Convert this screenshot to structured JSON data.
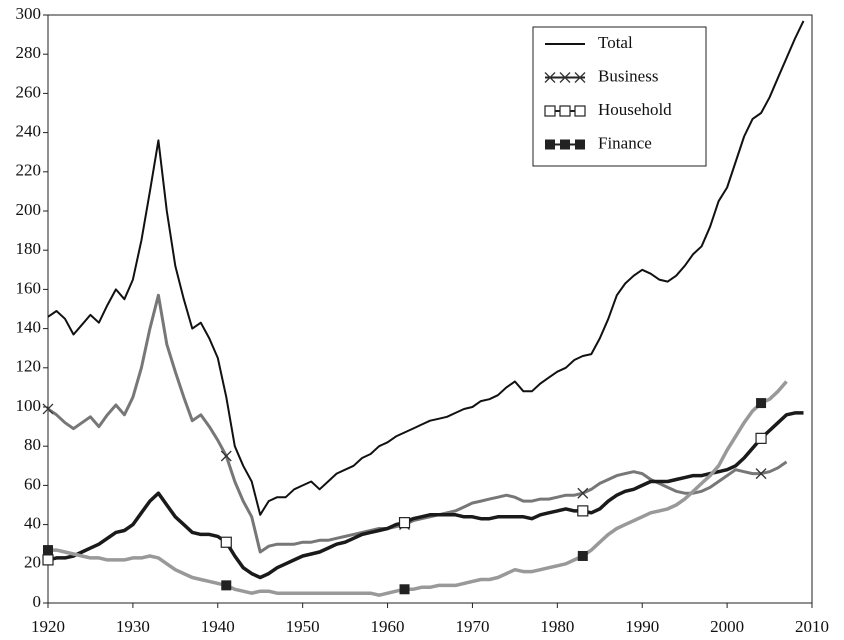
{
  "chart_data": {
    "type": "line",
    "x": [
      1920,
      1921,
      1922,
      1923,
      1924,
      1925,
      1926,
      1927,
      1928,
      1929,
      1930,
      1931,
      1932,
      1933,
      1934,
      1935,
      1936,
      1937,
      1938,
      1939,
      1940,
      1941,
      1942,
      1943,
      1944,
      1945,
      1946,
      1947,
      1948,
      1949,
      1950,
      1951,
      1952,
      1953,
      1954,
      1955,
      1956,
      1957,
      1958,
      1959,
      1960,
      1961,
      1962,
      1963,
      1964,
      1965,
      1966,
      1967,
      1968,
      1969,
      1970,
      1971,
      1972,
      1973,
      1974,
      1975,
      1976,
      1977,
      1978,
      1979,
      1980,
      1981,
      1982,
      1983,
      1984,
      1985,
      1986,
      1987,
      1988,
      1989,
      1990,
      1991,
      1992,
      1993,
      1994,
      1995,
      1996,
      1997,
      1998,
      1999,
      2000,
      2001,
      2002,
      2003,
      2004,
      2005,
      2006,
      2007,
      2008,
      2009
    ],
    "series": [
      {
        "name": "Total",
        "color": "#111111",
        "width": 2,
        "marker": "none",
        "values": [
          146,
          149,
          145,
          137,
          142,
          147,
          143,
          152,
          160,
          155,
          165,
          185,
          210,
          236,
          200,
          172,
          155,
          140,
          143,
          135,
          125,
          105,
          80,
          70,
          62,
          45,
          52,
          54,
          54,
          58,
          60,
          62,
          58,
          62,
          66,
          68,
          70,
          74,
          76,
          80,
          82,
          85,
          87,
          89,
          91,
          93,
          94,
          95,
          97,
          99,
          100,
          103,
          104,
          106,
          110,
          113,
          108,
          108,
          112,
          115,
          118,
          120,
          124,
          126,
          127,
          135,
          145,
          157,
          163,
          167,
          170,
          168,
          165,
          164,
          167,
          172,
          178,
          182,
          192,
          205,
          212,
          225,
          238,
          247,
          250,
          258,
          268,
          278,
          288,
          297
        ]
      },
      {
        "name": "Business",
        "color": "#777777",
        "width": 3,
        "marker": "x",
        "values": [
          99,
          96,
          92,
          89,
          92,
          95,
          90,
          96,
          101,
          96,
          105,
          120,
          140,
          157,
          132,
          118,
          105,
          93,
          96,
          90,
          83,
          75,
          62,
          52,
          44,
          26,
          29,
          30,
          30,
          30,
          31,
          31,
          32,
          32,
          33,
          34,
          35,
          36,
          37,
          38,
          38,
          39,
          40,
          42,
          43,
          44,
          45,
          46,
          47,
          49,
          51,
          52,
          53,
          54,
          55,
          54,
          52,
          52,
          53,
          53,
          54,
          55,
          55,
          56,
          58,
          61,
          63,
          65,
          66,
          67,
          66,
          63,
          61,
          59,
          57,
          56,
          56,
          57,
          59,
          62,
          65,
          68,
          67,
          66,
          66,
          67,
          69,
          72,
          null,
          null
        ]
      },
      {
        "name": "Household",
        "color": "#1a1a1a",
        "width": 3.5,
        "marker": "open-square",
        "values": [
          22,
          23,
          23,
          24,
          26,
          28,
          30,
          33,
          36,
          37,
          40,
          46,
          52,
          56,
          50,
          44,
          40,
          36,
          35,
          35,
          34,
          31,
          24,
          18,
          15,
          13,
          15,
          18,
          20,
          22,
          24,
          25,
          26,
          28,
          30,
          31,
          33,
          35,
          36,
          37,
          38,
          40,
          41,
          43,
          44,
          45,
          45,
          45,
          45,
          44,
          44,
          43,
          43,
          44,
          44,
          44,
          44,
          43,
          45,
          46,
          47,
          48,
          47,
          47,
          46,
          48,
          52,
          55,
          57,
          58,
          60,
          62,
          62,
          62,
          63,
          64,
          65,
          65,
          66,
          67,
          68,
          70,
          74,
          79,
          84,
          88,
          92,
          96,
          97,
          97
        ]
      },
      {
        "name": "Finance",
        "color": "#999999",
        "width": 3.5,
        "marker": "filled-square",
        "values": [
          27,
          27,
          26,
          25,
          24,
          23,
          23,
          22,
          22,
          22,
          23,
          23,
          24,
          23,
          20,
          17,
          15,
          13,
          12,
          11,
          10,
          9,
          7,
          6,
          5,
          6,
          6,
          5,
          5,
          5,
          5,
          5,
          5,
          5,
          5,
          5,
          5,
          5,
          5,
          4,
          5,
          6,
          7,
          7,
          8,
          8,
          9,
          9,
          9,
          10,
          11,
          12,
          12,
          13,
          15,
          17,
          16,
          16,
          17,
          18,
          19,
          20,
          22,
          24,
          27,
          31,
          35,
          38,
          40,
          42,
          44,
          46,
          47,
          48,
          50,
          53,
          57,
          61,
          65,
          70,
          78,
          85,
          92,
          98,
          102,
          104,
          108,
          113,
          null,
          null
        ]
      }
    ],
    "xlim": [
      1920,
      2010
    ],
    "xticks": [
      1920,
      1930,
      1940,
      1950,
      1960,
      1970,
      1980,
      1990,
      2000,
      2010
    ],
    "ylim": [
      0,
      300
    ],
    "yticks": [
      0,
      20,
      40,
      60,
      80,
      100,
      120,
      140,
      160,
      180,
      200,
      220,
      240,
      260,
      280,
      300
    ],
    "legend": "upper right",
    "grid": false
  }
}
